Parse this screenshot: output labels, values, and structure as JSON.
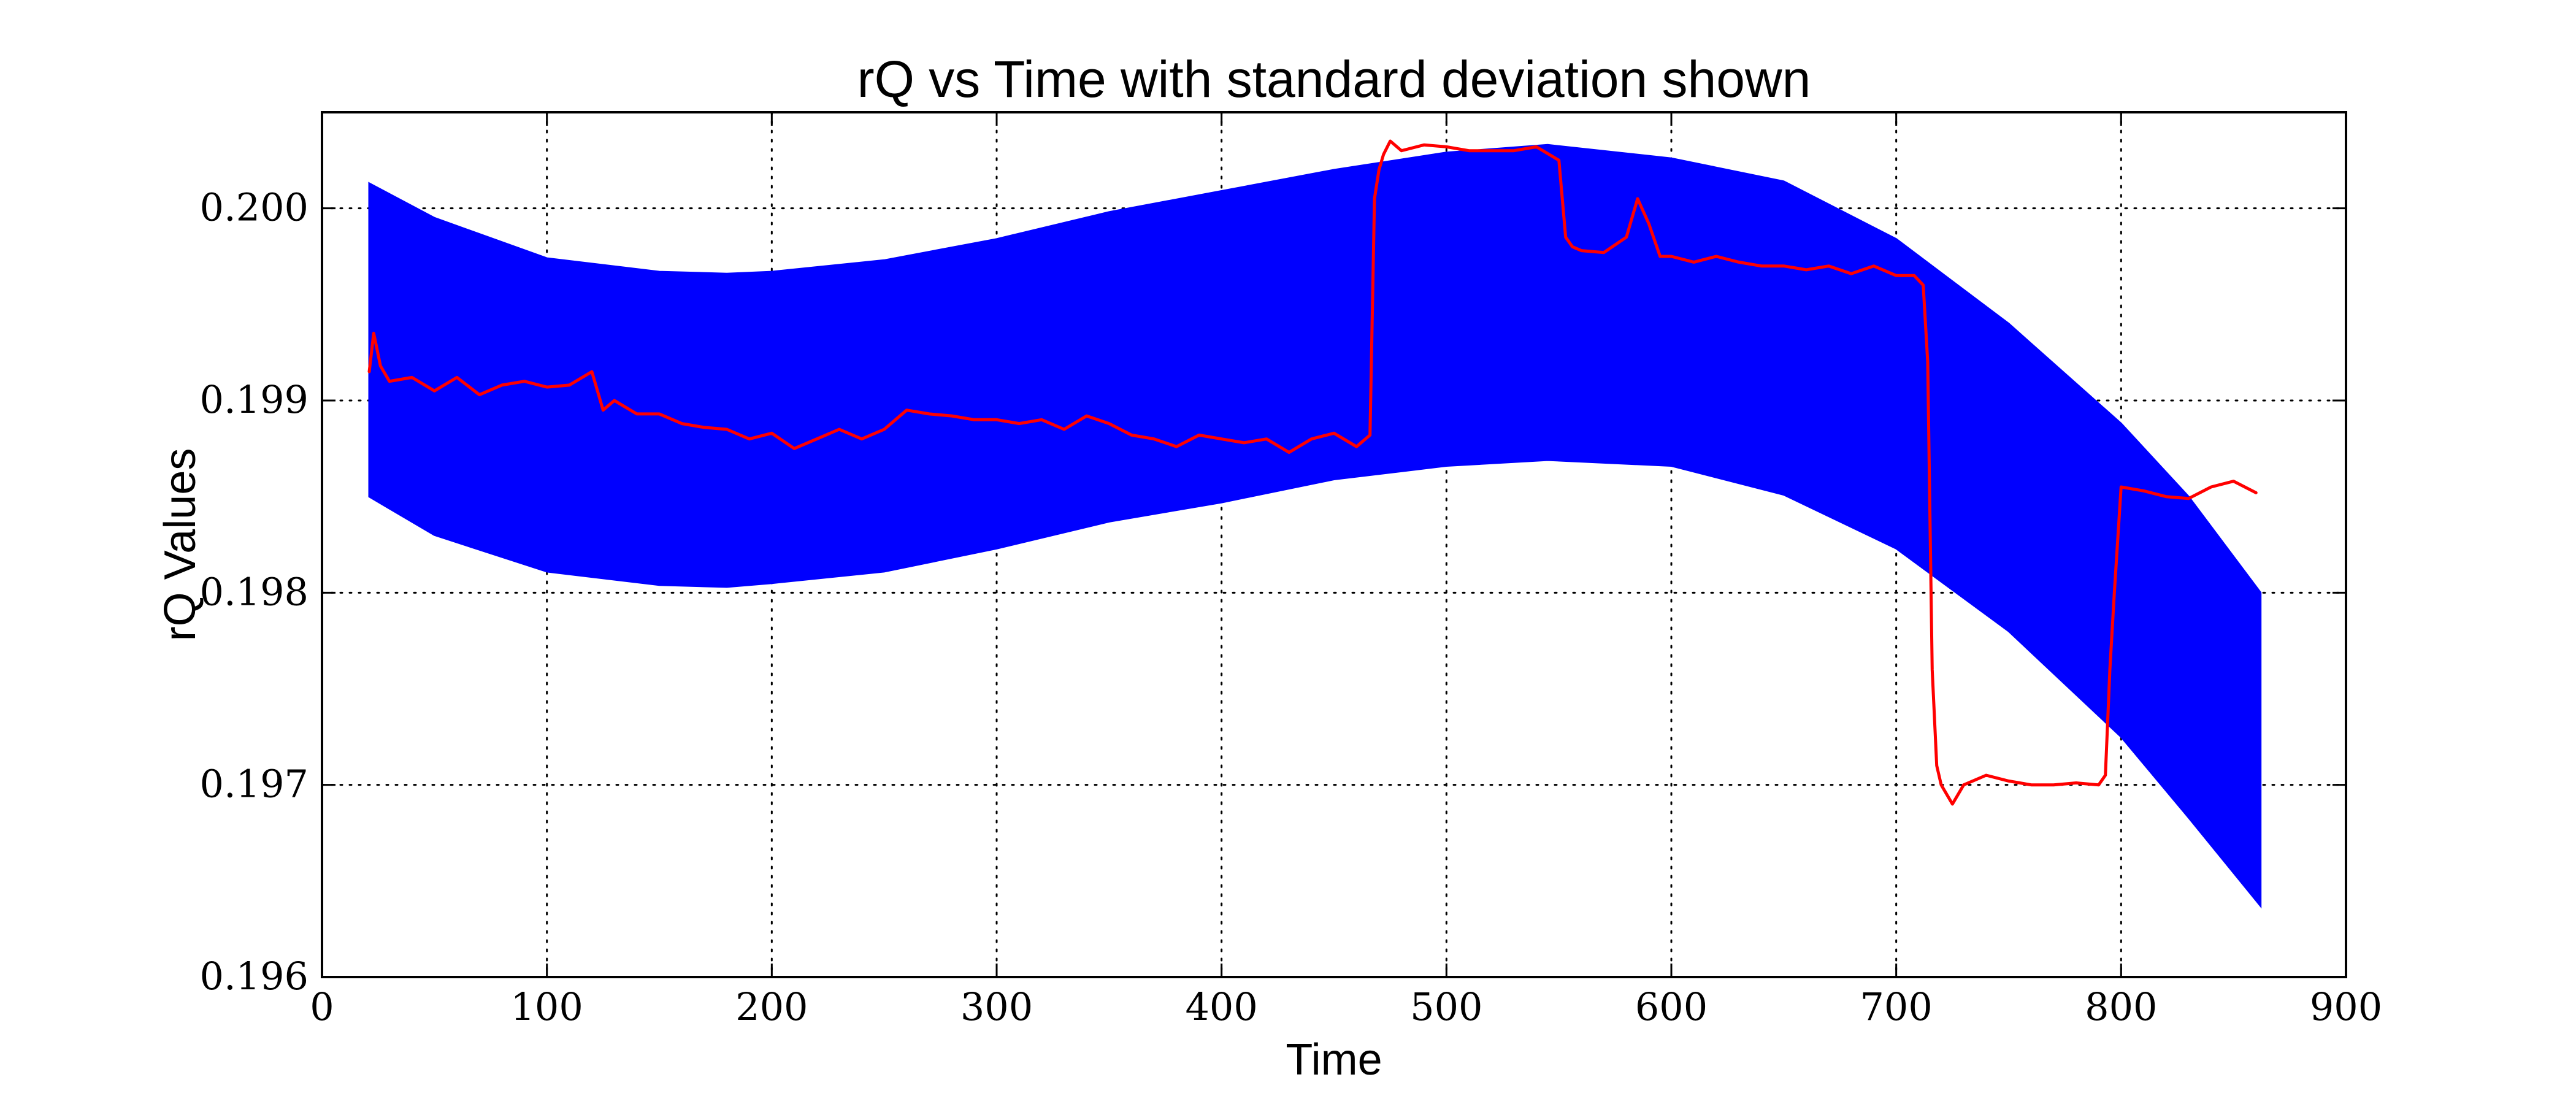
{
  "chart_data": {
    "type": "line",
    "title": "rQ vs Time with standard deviation shown",
    "xlabel": "Time",
    "ylabel": "rQ Values",
    "xlim": [
      0,
      900
    ],
    "ylim": [
      0.196,
      0.2005
    ],
    "xticks": [
      0,
      100,
      200,
      300,
      400,
      500,
      600,
      700,
      800,
      900
    ],
    "xtick_labels": [
      "0",
      "100",
      "200",
      "300",
      "400",
      "500",
      "600",
      "700",
      "800",
      "900"
    ],
    "yticks": [
      0.196,
      0.197,
      0.198,
      0.199,
      0.2
    ],
    "ytick_labels": [
      "0.196",
      "0.197",
      "0.198",
      "0.199",
      "0.200"
    ],
    "grid": true,
    "colors": {
      "band": "#0000ff",
      "line": "#ff0000"
    },
    "series": [
      {
        "kind": "band",
        "x": [
          21,
          50,
          100,
          150,
          180,
          200,
          250,
          300,
          350,
          400,
          450,
          500,
          545,
          600,
          650,
          700,
          750,
          800,
          830,
          862
        ],
        "upper": [
          0.20013,
          0.19995,
          0.19974,
          0.19967,
          0.19966,
          0.19967,
          0.19973,
          0.19984,
          0.19998,
          0.20009,
          0.2002,
          0.20029,
          0.20033,
          0.20026,
          0.20014,
          0.19984,
          0.1994,
          0.19888,
          0.1985,
          0.198
        ],
        "lower": [
          0.1985,
          0.1983,
          0.19811,
          0.19804,
          0.19803,
          0.19805,
          0.19811,
          0.19823,
          0.19837,
          0.19847,
          0.19859,
          0.19866,
          0.19869,
          0.19866,
          0.19851,
          0.19823,
          0.1978,
          0.19725,
          0.19683,
          0.19637
        ]
      },
      {
        "kind": "line",
        "x": [
          21,
          23,
          26,
          30,
          40,
          50,
          60,
          70,
          80,
          90,
          100,
          110,
          120,
          125,
          130,
          140,
          150,
          160,
          170,
          180,
          190,
          200,
          210,
          220,
          230,
          240,
          250,
          260,
          270,
          280,
          290,
          300,
          310,
          320,
          330,
          340,
          350,
          360,
          370,
          380,
          390,
          400,
          410,
          420,
          430,
          440,
          450,
          460,
          466,
          468,
          470,
          472,
          475,
          480,
          490,
          500,
          510,
          520,
          530,
          540,
          550,
          553,
          556,
          560,
          570,
          580,
          585,
          590,
          595,
          600,
          610,
          620,
          630,
          640,
          650,
          660,
          670,
          680,
          690,
          700,
          708,
          712,
          714,
          716,
          718,
          720,
          725,
          730,
          740,
          750,
          760,
          770,
          780,
          790,
          793,
          795,
          797,
          800,
          810,
          820,
          830,
          840,
          850,
          860
        ],
        "y": [
          0.19915,
          0.19935,
          0.19918,
          0.1991,
          0.19912,
          0.19905,
          0.19912,
          0.19903,
          0.19908,
          0.1991,
          0.19907,
          0.19908,
          0.19915,
          0.19895,
          0.199,
          0.19893,
          0.19893,
          0.19888,
          0.19886,
          0.19885,
          0.1988,
          0.19883,
          0.19875,
          0.1988,
          0.19885,
          0.1988,
          0.19885,
          0.19895,
          0.19893,
          0.19892,
          0.1989,
          0.1989,
          0.19888,
          0.1989,
          0.19885,
          0.19892,
          0.19888,
          0.19882,
          0.1988,
          0.19876,
          0.19882,
          0.1988,
          0.19878,
          0.1988,
          0.19873,
          0.1988,
          0.19883,
          0.19876,
          0.19882,
          0.20005,
          0.2002,
          0.20028,
          0.20035,
          0.2003,
          0.20033,
          0.20032,
          0.2003,
          0.2003,
          0.2003,
          0.20032,
          0.20025,
          0.19985,
          0.1998,
          0.19978,
          0.19977,
          0.19985,
          0.20005,
          0.19992,
          0.19975,
          0.19975,
          0.19972,
          0.19975,
          0.19972,
          0.1997,
          0.1997,
          0.19968,
          0.1997,
          0.19966,
          0.1997,
          0.19965,
          0.19965,
          0.1996,
          0.1992,
          0.1976,
          0.1971,
          0.197,
          0.1969,
          0.197,
          0.19705,
          0.19702,
          0.197,
          0.197,
          0.19701,
          0.197,
          0.19705,
          0.1976,
          0.198,
          0.19855,
          0.19853,
          0.1985,
          0.19849,
          0.19855,
          0.19858,
          0.19852
        ]
      }
    ]
  }
}
